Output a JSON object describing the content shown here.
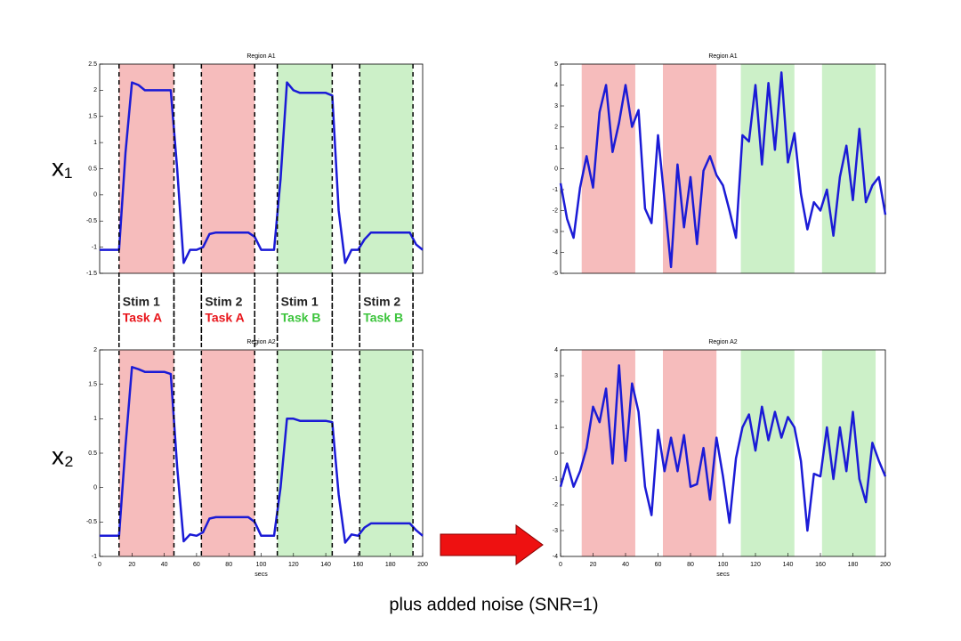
{
  "chart_data": [
    {
      "type": "line",
      "title": "Region A1",
      "color": "#1b1bd6",
      "x": [
        0,
        4,
        8,
        12,
        16,
        20,
        24,
        28,
        32,
        36,
        40,
        44,
        48,
        52,
        56,
        60,
        64,
        68,
        72,
        76,
        80,
        84,
        88,
        92,
        96,
        100,
        104,
        108,
        112,
        116,
        120,
        124,
        128,
        132,
        136,
        140,
        144,
        148,
        152,
        156,
        160,
        164,
        168,
        172,
        176,
        180,
        184,
        188,
        192,
        196,
        200
      ],
      "values": [
        -1.05,
        -1.05,
        -1.05,
        -1.05,
        0.8,
        2.15,
        2.1,
        2.0,
        2.0,
        2.0,
        2.0,
        2.0,
        0.5,
        -1.3,
        -1.05,
        -1.05,
        -1.0,
        -0.75,
        -0.72,
        -0.72,
        -0.72,
        -0.72,
        -0.72,
        -0.72,
        -0.8,
        -1.05,
        -1.05,
        -1.05,
        0.3,
        2.15,
        2.0,
        1.95,
        1.95,
        1.95,
        1.95,
        1.95,
        1.9,
        -0.3,
        -1.3,
        -1.05,
        -1.05,
        -0.85,
        -0.72,
        -0.72,
        -0.72,
        -0.72,
        -0.72,
        -0.72,
        -0.72,
        -0.95,
        -1.05
      ],
      "xlim": [
        0,
        200
      ],
      "ylim": [
        -1.5,
        2.5
      ],
      "yticks": [
        -1.5,
        -1,
        -0.5,
        0,
        0.5,
        1,
        1.5,
        2,
        2.5
      ],
      "regions": [
        {
          "x": [
            12,
            46
          ],
          "color": "#f6bcbc"
        },
        {
          "x": [
            63,
            96
          ],
          "color": "#f6bcbc"
        },
        {
          "x": [
            110,
            144
          ],
          "color": "#ccf0c8"
        },
        {
          "x": [
            161,
            194
          ],
          "color": "#ccf0c8"
        }
      ],
      "dashed_edges": true
    },
    {
      "type": "line",
      "title": "Region A2",
      "xlabel": "secs",
      "color": "#1b1bd6",
      "x": [
        0,
        4,
        8,
        12,
        16,
        20,
        24,
        28,
        32,
        36,
        40,
        44,
        48,
        52,
        56,
        60,
        64,
        68,
        72,
        76,
        80,
        84,
        88,
        92,
        96,
        100,
        104,
        108,
        112,
        116,
        120,
        124,
        128,
        132,
        136,
        140,
        144,
        148,
        152,
        156,
        160,
        164,
        168,
        172,
        176,
        180,
        184,
        188,
        192,
        196,
        200
      ],
      "values": [
        -0.7,
        -0.7,
        -0.7,
        -0.7,
        0.6,
        1.75,
        1.72,
        1.68,
        1.68,
        1.68,
        1.68,
        1.65,
        0.3,
        -0.78,
        -0.68,
        -0.7,
        -0.65,
        -0.45,
        -0.43,
        -0.43,
        -0.43,
        -0.43,
        -0.43,
        -0.43,
        -0.5,
        -0.7,
        -0.7,
        -0.7,
        0.0,
        1.0,
        1.0,
        0.97,
        0.97,
        0.97,
        0.97,
        0.97,
        0.95,
        -0.1,
        -0.8,
        -0.68,
        -0.7,
        -0.58,
        -0.52,
        -0.52,
        -0.52,
        -0.52,
        -0.52,
        -0.52,
        -0.52,
        -0.62,
        -0.7
      ],
      "xlim": [
        0,
        200
      ],
      "ylim": [
        -1,
        2
      ],
      "yticks": [
        -1,
        -0.5,
        0,
        0.5,
        1,
        1.5,
        2
      ],
      "xticks": [
        0,
        20,
        40,
        60,
        80,
        100,
        120,
        140,
        160,
        180,
        200
      ],
      "regions": [
        {
          "x": [
            12,
            46
          ],
          "color": "#f6bcbc"
        },
        {
          "x": [
            63,
            96
          ],
          "color": "#f6bcbc"
        },
        {
          "x": [
            110,
            144
          ],
          "color": "#ccf0c8"
        },
        {
          "x": [
            161,
            194
          ],
          "color": "#ccf0c8"
        }
      ],
      "dashed_edges": true
    },
    {
      "type": "line",
      "title": "Region A1",
      "color": "#1b1bd6",
      "x": [
        0,
        4,
        8,
        12,
        16,
        20,
        24,
        28,
        32,
        36,
        40,
        44,
        48,
        52,
        56,
        60,
        64,
        68,
        72,
        76,
        80,
        84,
        88,
        92,
        96,
        100,
        104,
        108,
        112,
        116,
        120,
        124,
        128,
        132,
        136,
        140,
        144,
        148,
        152,
        156,
        160,
        164,
        168,
        172,
        176,
        180,
        184,
        188,
        192,
        196,
        200
      ],
      "values": [
        -0.7,
        -2.4,
        -3.3,
        -0.9,
        0.6,
        -0.9,
        2.7,
        4.0,
        0.8,
        2.2,
        4.0,
        2.0,
        2.8,
        -1.9,
        -2.6,
        1.6,
        -1.5,
        -4.7,
        0.2,
        -2.8,
        -0.4,
        -3.6,
        -0.1,
        0.6,
        -0.3,
        -0.8,
        -2.0,
        -3.3,
        1.6,
        1.3,
        4.0,
        0.2,
        4.1,
        0.9,
        4.6,
        0.3,
        1.7,
        -1.2,
        -2.9,
        -1.6,
        -2.0,
        -1.0,
        -3.2,
        -0.4,
        1.1,
        -1.5,
        1.9,
        -1.6,
        -0.8,
        -0.4,
        -2.2
      ],
      "xlim": [
        0,
        200
      ],
      "ylim": [
        -5,
        5
      ],
      "yticks": [
        -5,
        -4,
        -3,
        -2,
        -1,
        0,
        1,
        2,
        3,
        4,
        5
      ],
      "regions": [
        {
          "x": [
            13,
            46
          ],
          "color": "#f6bcbc"
        },
        {
          "x": [
            63,
            96
          ],
          "color": "#f6bcbc"
        },
        {
          "x": [
            111,
            144
          ],
          "color": "#ccf0c8"
        },
        {
          "x": [
            161,
            194
          ],
          "color": "#ccf0c8"
        }
      ],
      "dashed_edges": false
    },
    {
      "type": "line",
      "title": "Region A2",
      "xlabel": "secs",
      "color": "#1b1bd6",
      "x": [
        0,
        4,
        8,
        12,
        16,
        20,
        24,
        28,
        32,
        36,
        40,
        44,
        48,
        52,
        56,
        60,
        64,
        68,
        72,
        76,
        80,
        84,
        88,
        92,
        96,
        100,
        104,
        108,
        112,
        116,
        120,
        124,
        128,
        132,
        136,
        140,
        144,
        148,
        152,
        156,
        160,
        164,
        168,
        172,
        176,
        180,
        184,
        188,
        192,
        196,
        200
      ],
      "values": [
        -1.3,
        -0.4,
        -1.3,
        -0.7,
        0.2,
        1.8,
        1.2,
        2.5,
        -0.4,
        3.4,
        -0.3,
        2.7,
        1.6,
        -1.3,
        -2.4,
        0.9,
        -0.7,
        0.6,
        -0.7,
        0.7,
        -1.3,
        -1.2,
        0.2,
        -1.8,
        0.6,
        -0.9,
        -2.7,
        -0.2,
        1.0,
        1.5,
        0.1,
        1.8,
        0.5,
        1.6,
        0.6,
        1.4,
        1.0,
        -0.3,
        -3.0,
        -0.8,
        -0.9,
        1.0,
        -1.0,
        1.0,
        -0.7,
        1.6,
        -1.0,
        -1.9,
        0.4,
        -0.3,
        -0.9
      ],
      "xlim": [
        0,
        200
      ],
      "ylim": [
        -4,
        4
      ],
      "yticks": [
        -4,
        -3,
        -2,
        -1,
        0,
        1,
        2,
        3,
        4
      ],
      "xticks": [
        0,
        20,
        40,
        60,
        80,
        100,
        120,
        140,
        160,
        180,
        200
      ],
      "regions": [
        {
          "x": [
            13,
            46
          ],
          "color": "#f6bcbc"
        },
        {
          "x": [
            63,
            96
          ],
          "color": "#f6bcbc"
        },
        {
          "x": [
            111,
            144
          ],
          "color": "#ccf0c8"
        },
        {
          "x": [
            161,
            194
          ],
          "color": "#ccf0c8"
        }
      ],
      "dashed_edges": false
    }
  ],
  "row_labels": [
    "x₁",
    "x₂"
  ],
  "stim_labels": [
    {
      "stim": "Stim 1",
      "task": "Task A",
      "task_color": "#e8151b"
    },
    {
      "stim": "Stim 2",
      "task": "Task A",
      "task_color": "#e8151b"
    },
    {
      "stim": "Stim 1",
      "task": "Task B",
      "task_color": "#3cc43c"
    },
    {
      "stim": "Stim 2",
      "task": "Task B",
      "task_color": "#3cc43c"
    }
  ],
  "caption": "plus added noise (SNR=1)"
}
